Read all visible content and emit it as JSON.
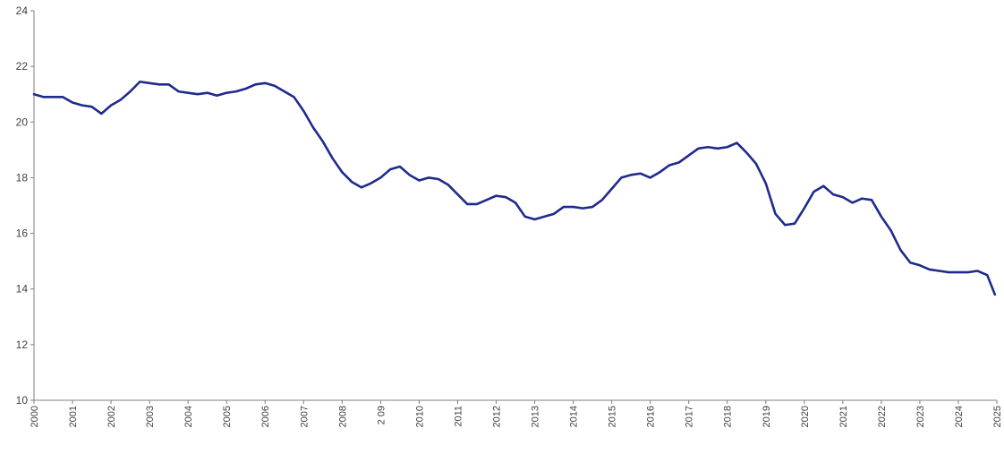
{
  "chart_data": {
    "type": "line",
    "title": "",
    "xlabel": "",
    "ylabel": "",
    "ylim": [
      10,
      24
    ],
    "xlim": [
      2000,
      2025
    ],
    "y_ticks": [
      10,
      12,
      14,
      16,
      18,
      20,
      22,
      24
    ],
    "x_tick_labels": [
      "2000",
      "2001",
      "2002",
      "2003",
      "2004",
      "2005",
      "2006",
      "2007",
      "2008",
      "2 09",
      "2010",
      "2011",
      "2012",
      "2013",
      "2014",
      "2015",
      "2016",
      "2017",
      "2018",
      "2019",
      "2020",
      "2021",
      "2022",
      "2023",
      "2024",
      "2025"
    ],
    "grid": false,
    "legend": "none",
    "colors": {
      "line": "#1f2a8c",
      "axis": "#7f7f7f",
      "tick_text": "#404040"
    },
    "series": [
      {
        "x": [
          2000.0,
          2000.25,
          2000.5,
          2000.75,
          2001.0,
          2001.25,
          2001.5,
          2001.75,
          2002.0,
          2002.25,
          2002.5,
          2002.75,
          2003.0,
          2003.25,
          2003.5,
          2003.75,
          2004.0,
          2004.25,
          2004.5,
          2004.75,
          2005.0,
          2005.25,
          2005.5,
          2005.75,
          2006.0,
          2006.25,
          2006.5,
          2006.75,
          2007.0,
          2007.25,
          2007.5,
          2007.75,
          2008.0,
          2008.25,
          2008.5,
          2008.75,
          2009.0,
          2009.25,
          2009.5,
          2009.75,
          2010.0,
          2010.25,
          2010.5,
          2010.75,
          2011.0,
          2011.25,
          2011.5,
          2011.75,
          2012.0,
          2012.25,
          2012.5,
          2012.75,
          2013.0,
          2013.25,
          2013.5,
          2013.75,
          2014.0,
          2014.25,
          2014.5,
          2014.75,
          2015.0,
          2015.25,
          2015.5,
          2015.75,
          2016.0,
          2016.25,
          2016.5,
          2016.75,
          2017.0,
          2017.25,
          2017.5,
          2017.75,
          2018.0,
          2018.25,
          2018.5,
          2018.75,
          2019.0,
          2019.25,
          2019.5,
          2019.75,
          2020.0,
          2020.25,
          2020.5,
          2020.75,
          2021.0,
          2021.25,
          2021.5,
          2021.75,
          2022.0,
          2022.25,
          2022.5,
          2022.75,
          2023.0,
          2023.25,
          2023.5,
          2023.75,
          2024.0,
          2024.25,
          2024.5,
          2024.75,
          2024.95
        ],
        "y": [
          21.0,
          20.9,
          20.9,
          20.9,
          20.7,
          20.6,
          20.55,
          20.3,
          20.6,
          20.8,
          21.1,
          21.45,
          21.4,
          21.35,
          21.35,
          21.1,
          21.05,
          21.0,
          21.05,
          20.95,
          21.05,
          21.1,
          21.2,
          21.35,
          21.4,
          21.3,
          21.1,
          20.9,
          20.4,
          19.8,
          19.3,
          18.7,
          18.2,
          17.85,
          17.65,
          17.8,
          18.0,
          18.3,
          18.4,
          18.1,
          17.9,
          18.0,
          17.95,
          17.75,
          17.4,
          17.05,
          17.05,
          17.2,
          17.35,
          17.3,
          17.1,
          16.6,
          16.5,
          16.6,
          16.7,
          16.95,
          16.95,
          16.9,
          16.95,
          17.2,
          17.6,
          18.0,
          18.1,
          18.15,
          18.0,
          18.2,
          18.45,
          18.55,
          18.8,
          19.05,
          19.1,
          19.05,
          19.1,
          19.25,
          18.9,
          18.5,
          17.8,
          16.7,
          16.3,
          16.35,
          16.9,
          17.5,
          17.7,
          17.4,
          17.3,
          17.1,
          17.25,
          17.2,
          16.6,
          16.1,
          15.4,
          14.95,
          14.85,
          14.7,
          14.65,
          14.6,
          14.6,
          14.6,
          14.65,
          14.5,
          13.8
        ]
      }
    ]
  }
}
